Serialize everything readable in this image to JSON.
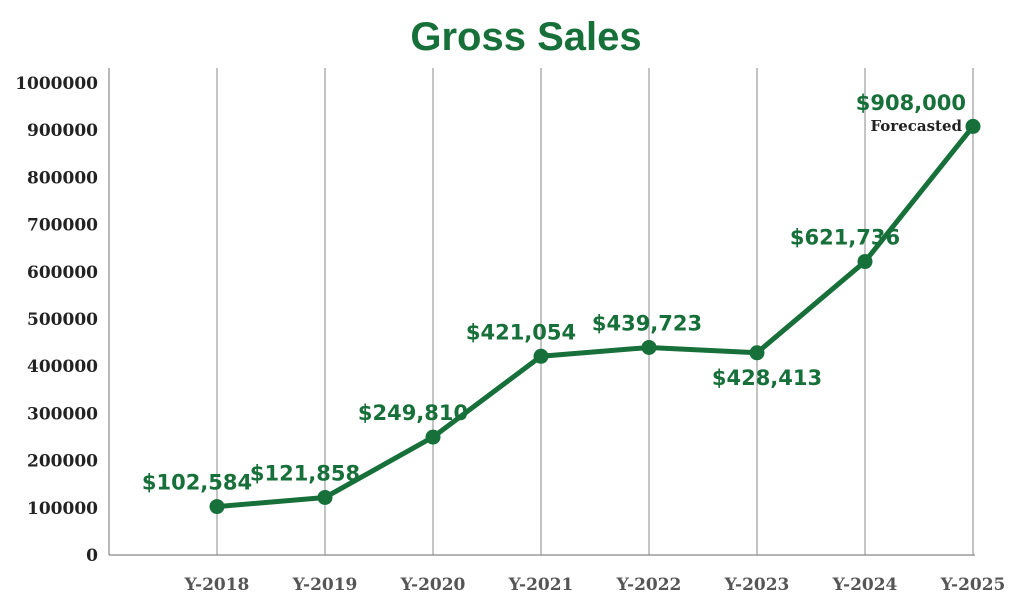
{
  "chart_data": {
    "type": "line",
    "title": "Gross Sales",
    "xlabel": "",
    "ylabel": "",
    "categories": [
      "Y-2018",
      "Y-2019",
      "Y-2020",
      "Y-2021",
      "Y-2022",
      "Y-2023",
      "Y-2024",
      "Y-2025"
    ],
    "values": [
      102584,
      121858,
      249810,
      421054,
      439723,
      428413,
      621736,
      908000
    ],
    "data_labels": [
      "$102,584",
      "$121,858",
      "$249,810",
      "$421,054",
      "$439,723",
      "$428,413",
      "$621,736",
      "$908,000"
    ],
    "annotation": "Forecasted",
    "ylim": [
      0,
      1000000
    ],
    "yticks": [
      0,
      100000,
      200000,
      300000,
      400000,
      500000,
      600000,
      700000,
      800000,
      900000,
      1000000
    ],
    "ytick_labels": [
      "0",
      "100000",
      "200000",
      "300000",
      "400000",
      "500000",
      "600000",
      "700000",
      "800000",
      "900000",
      "1000000"
    ],
    "grid": "vertical",
    "legend": "none",
    "colors": {
      "series": "#17703a",
      "title": "#17703a",
      "grid": "#888888"
    }
  }
}
